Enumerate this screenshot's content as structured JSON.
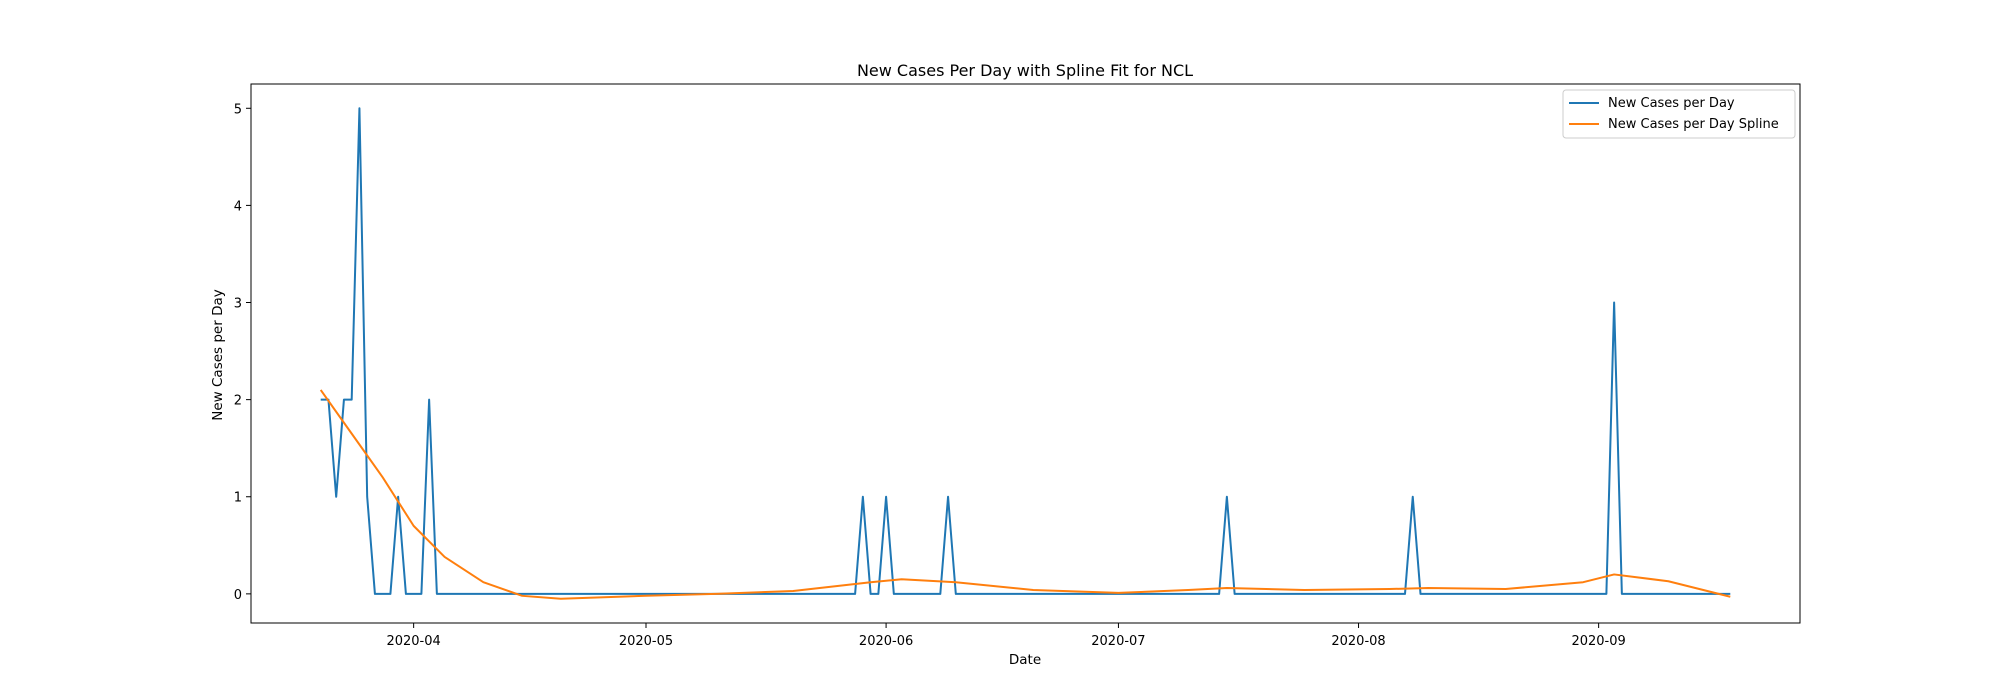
{
  "chart_data": {
    "type": "line",
    "title": "New Cases Per Day with Spline Fit for NCL",
    "xlabel": "Date",
    "ylabel": "New Cases per Day",
    "xlim": [
      "2020-03-11",
      "2020-09-27"
    ],
    "ylim": [
      -0.3,
      5.25
    ],
    "x_ticks": [
      "2020-04",
      "2020-05",
      "2020-06",
      "2020-07",
      "2020-08",
      "2020-09"
    ],
    "y_ticks": [
      0,
      1,
      2,
      3,
      4,
      5
    ],
    "grid": false,
    "legend_position": "top-right",
    "colors": {
      "series1": "#1f77b4",
      "series2": "#ff7f0e"
    },
    "series": [
      {
        "name": "New Cases per Day",
        "x": [
          "2020-03-20",
          "2020-03-21",
          "2020-03-22",
          "2020-03-23",
          "2020-03-24",
          "2020-03-25",
          "2020-03-26",
          "2020-03-27",
          "2020-03-28",
          "2020-03-29",
          "2020-03-30",
          "2020-03-31",
          "2020-04-01",
          "2020-04-02",
          "2020-04-03",
          "2020-04-04",
          "2020-04-05",
          "2020-05-28",
          "2020-05-29",
          "2020-05-30",
          "2020-05-31",
          "2020-06-01",
          "2020-06-02",
          "2020-06-08",
          "2020-06-09",
          "2020-06-10",
          "2020-07-14",
          "2020-07-15",
          "2020-07-16",
          "2020-08-07",
          "2020-08-08",
          "2020-08-09",
          "2020-09-02",
          "2020-09-03",
          "2020-09-04",
          "2020-09-18"
        ],
        "values": [
          2,
          2,
          1,
          2,
          2,
          5,
          1,
          0,
          0,
          0,
          1,
          0,
          0,
          0,
          2,
          0,
          0,
          0,
          1,
          0,
          0,
          1,
          0,
          0,
          1,
          0,
          0,
          1,
          0,
          0,
          1,
          0,
          0,
          3,
          0,
          0
        ]
      },
      {
        "name": "New Cases per Day Spline",
        "x": [
          "2020-03-20",
          "2020-03-24",
          "2020-03-28",
          "2020-04-01",
          "2020-04-05",
          "2020-04-10",
          "2020-04-15",
          "2020-04-20",
          "2020-05-01",
          "2020-05-10",
          "2020-05-20",
          "2020-05-30",
          "2020-06-03",
          "2020-06-10",
          "2020-06-20",
          "2020-07-01",
          "2020-07-10",
          "2020-07-15",
          "2020-07-25",
          "2020-08-05",
          "2020-08-10",
          "2020-08-20",
          "2020-08-30",
          "2020-09-03",
          "2020-09-10",
          "2020-09-18"
        ],
        "values": [
          2.1,
          1.65,
          1.2,
          0.7,
          0.38,
          0.12,
          -0.02,
          -0.05,
          -0.02,
          0.0,
          0.03,
          0.12,
          0.15,
          0.12,
          0.04,
          0.01,
          0.04,
          0.06,
          0.04,
          0.05,
          0.06,
          0.05,
          0.12,
          0.2,
          0.13,
          -0.03
        ]
      }
    ]
  }
}
